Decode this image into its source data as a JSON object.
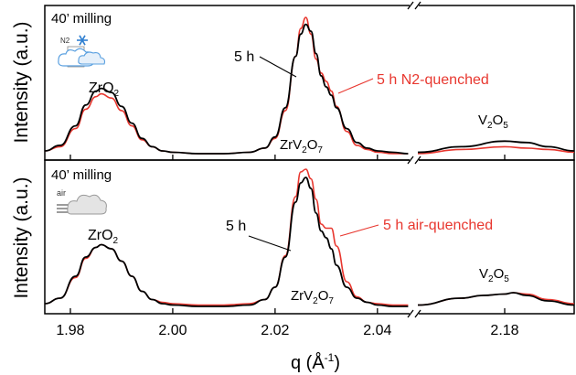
{
  "colors": {
    "black_series": "#000000",
    "red_series": "#e8372f",
    "icon_blue": "#2f7fd0",
    "axes": "#000000"
  },
  "chart_data": [
    {
      "type": "line",
      "panel": "top",
      "ylabel": "Intensity (a.u.)",
      "corner_label": "40’ milling",
      "icon": "nitrogen-snowflake-cloud-icon",
      "icon_text": "N2",
      "annotations": {
        "zro2": {
          "base": "ZrO",
          "sub": "2"
        },
        "zrv2o7": {
          "base1": "ZrV",
          "sub1": "2",
          "base2": "O",
          "sub2": "7"
        },
        "v2o5": {
          "base1": "V",
          "sub1": "2",
          "base2": "O",
          "sub2": "5"
        }
      },
      "series": [
        {
          "name": "5 h",
          "color": "#000000",
          "x": [
            1.975,
            1.978,
            1.981,
            1.983,
            1.985,
            1.986,
            1.988,
            1.99,
            1.992,
            1.994,
            1.996,
            1.998,
            2.0,
            2.005,
            2.01,
            2.015,
            2.018,
            2.02,
            2.022,
            2.024,
            2.025,
            2.026,
            2.027,
            2.028,
            2.029,
            2.03,
            2.031,
            2.032,
            2.034,
            2.036,
            2.038,
            2.04,
            2.043,
            2.046,
            2.16,
            2.17,
            2.18,
            2.185,
            2.19,
            2.196
          ],
          "values": [
            0.02,
            0.06,
            0.2,
            0.35,
            0.45,
            0.47,
            0.44,
            0.34,
            0.22,
            0.11,
            0.05,
            0.02,
            0.01,
            0.0,
            0.0,
            0.01,
            0.04,
            0.12,
            0.33,
            0.7,
            0.86,
            0.93,
            0.88,
            0.72,
            0.56,
            0.48,
            0.42,
            0.33,
            0.18,
            0.08,
            0.04,
            0.02,
            0.01,
            0.0,
            0.01,
            0.05,
            0.09,
            0.08,
            0.05,
            0.02
          ]
        },
        {
          "name": "5 h N2-quenched",
          "color": "#e8372f",
          "x": [
            1.975,
            1.978,
            1.981,
            1.983,
            1.985,
            1.986,
            1.988,
            1.99,
            1.992,
            1.994,
            1.996,
            1.998,
            2.0,
            2.005,
            2.01,
            2.015,
            2.018,
            2.02,
            2.022,
            2.024,
            2.025,
            2.026,
            2.027,
            2.028,
            2.029,
            2.03,
            2.031,
            2.032,
            2.034,
            2.036,
            2.038,
            2.04,
            2.043,
            2.046,
            2.16,
            2.17,
            2.18,
            2.185,
            2.19,
            2.196
          ],
          "values": [
            0.02,
            0.05,
            0.18,
            0.32,
            0.41,
            0.43,
            0.4,
            0.31,
            0.2,
            0.1,
            0.05,
            0.02,
            0.01,
            0.0,
            0.0,
            0.01,
            0.04,
            0.11,
            0.31,
            0.7,
            0.9,
            0.98,
            0.86,
            0.68,
            0.58,
            0.52,
            0.45,
            0.34,
            0.16,
            0.06,
            0.03,
            0.01,
            0.0,
            0.0,
            0.0,
            0.03,
            0.05,
            0.04,
            0.03,
            0.01
          ]
        }
      ]
    },
    {
      "type": "line",
      "panel": "bottom",
      "ylabel": "Intensity (a.u.)",
      "corner_label": "40’ milling",
      "icon": "air-cloud-icon",
      "icon_text": "air",
      "annotations": {
        "zro2": {
          "base": "ZrO",
          "sub": "2"
        },
        "zrv2o7": {
          "base1": "ZrV",
          "sub1": "2",
          "base2": "O",
          "sub2": "7"
        },
        "v2o5": {
          "base1": "V",
          "sub1": "2",
          "base2": "O",
          "sub2": "5"
        }
      },
      "series": [
        {
          "name": "5 h",
          "color": "#000000",
          "x": [
            1.975,
            1.978,
            1.981,
            1.983,
            1.985,
            1.986,
            1.988,
            1.99,
            1.992,
            1.994,
            1.996,
            1.998,
            2.0,
            2.005,
            2.01,
            2.015,
            2.018,
            2.02,
            2.022,
            2.024,
            2.025,
            2.026,
            2.027,
            2.028,
            2.029,
            2.03,
            2.031,
            2.032,
            2.034,
            2.036,
            2.038,
            2.04,
            2.043,
            2.046,
            2.16,
            2.17,
            2.175,
            2.18,
            2.182,
            2.185,
            2.19,
            2.196
          ],
          "values": [
            0.02,
            0.06,
            0.22,
            0.36,
            0.43,
            0.45,
            0.42,
            0.33,
            0.22,
            0.11,
            0.05,
            0.02,
            0.01,
            0.0,
            0.0,
            0.01,
            0.05,
            0.14,
            0.36,
            0.76,
            0.9,
            0.94,
            0.86,
            0.68,
            0.55,
            0.5,
            0.42,
            0.3,
            0.14,
            0.06,
            0.03,
            0.01,
            0.0,
            0.0,
            0.01,
            0.06,
            0.08,
            0.09,
            0.1,
            0.08,
            0.04,
            0.01
          ]
        },
        {
          "name": "5 h air-quenched",
          "color": "#e8372f",
          "x": [
            1.975,
            1.978,
            1.981,
            1.983,
            1.985,
            1.986,
            1.988,
            1.99,
            1.992,
            1.994,
            1.996,
            1.998,
            2.0,
            2.005,
            2.01,
            2.015,
            2.018,
            2.02,
            2.022,
            2.024,
            2.025,
            2.026,
            2.027,
            2.028,
            2.029,
            2.03,
            2.031,
            2.032,
            2.034,
            2.036,
            2.038,
            2.04,
            2.043,
            2.046,
            2.16,
            2.17,
            2.175,
            2.18,
            2.182,
            2.185,
            2.19,
            2.196
          ],
          "values": [
            0.02,
            0.06,
            0.21,
            0.35,
            0.43,
            0.45,
            0.42,
            0.33,
            0.22,
            0.11,
            0.05,
            0.03,
            0.02,
            0.01,
            0.01,
            0.02,
            0.05,
            0.14,
            0.37,
            0.8,
            0.98,
            1.0,
            0.93,
            0.78,
            0.6,
            0.57,
            0.57,
            0.44,
            0.18,
            0.07,
            0.03,
            0.02,
            0.01,
            0.01,
            0.01,
            0.06,
            0.08,
            0.09,
            0.1,
            0.09,
            0.05,
            0.02
          ]
        }
      ]
    }
  ],
  "x_axis": {
    "label": "q (Å",
    "label_sup": "-1",
    "label_close": ")",
    "ticks": [
      {
        "value": 1.98,
        "label": "1.98"
      },
      {
        "value": 2.0,
        "label": "2.00"
      },
      {
        "value": 2.02,
        "label": "2.02"
      },
      {
        "value": 2.04,
        "label": "2.04"
      },
      {
        "value": 2.18,
        "label": "2.18"
      }
    ],
    "segments": [
      [
        1.975,
        2.047
      ],
      [
        2.16,
        2.196
      ]
    ],
    "scale_break": true
  }
}
